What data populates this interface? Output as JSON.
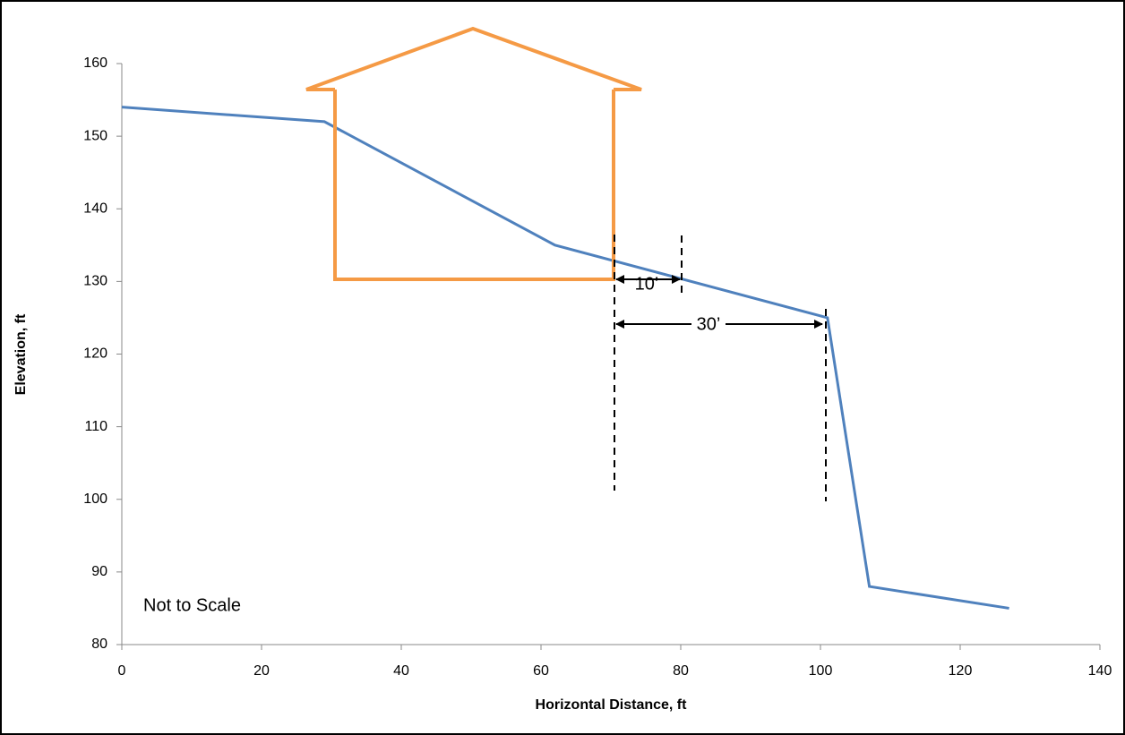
{
  "chart_data": {
    "type": "line",
    "xlabel": "Horizontal  Distance,  ft",
    "ylabel": "Elevation,  ft",
    "x": [
      0,
      29,
      62,
      101,
      107,
      127
    ],
    "series": [
      {
        "color": "#4f81bd",
        "values": [
          154,
          152,
          135,
          125,
          88,
          85
        ]
      }
    ],
    "xlim": [
      0,
      140
    ],
    "xticks": [
      0,
      20,
      40,
      60,
      80,
      100,
      120,
      140
    ],
    "ylim": [
      80,
      160
    ],
    "yticks": [
      80,
      90,
      100,
      110,
      120,
      130,
      140,
      150,
      160
    ],
    "annotations": [
      "Not to Scale",
      "10’",
      "30’"
    ]
  }
}
